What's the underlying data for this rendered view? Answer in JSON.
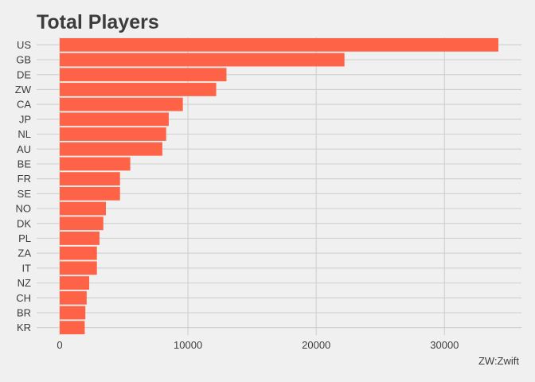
{
  "chart_data": {
    "type": "bar",
    "orientation": "horizontal",
    "title": "Total Players",
    "caption": "ZW:Zwift",
    "categories": [
      "US",
      "GB",
      "DE",
      "ZW",
      "CA",
      "JP",
      "NL",
      "AU",
      "BE",
      "FR",
      "SE",
      "NO",
      "DK",
      "PL",
      "ZA",
      "IT",
      "NZ",
      "CH",
      "BR",
      "KR"
    ],
    "values": [
      34200,
      22200,
      13000,
      12200,
      9600,
      8500,
      8300,
      8000,
      5500,
      4700,
      4700,
      3600,
      3400,
      3100,
      2900,
      2900,
      2300,
      2100,
      2000,
      1950
    ],
    "xticks": [
      0,
      10000,
      20000,
      30000
    ],
    "xlim": [
      -1800,
      36000
    ],
    "xlabel": "",
    "ylabel": "",
    "grid": true,
    "bar_color": "#ff6347",
    "background_color": "#f0f0f0",
    "grid_color": "#d2d2d2",
    "text_color": "#3c3c3c"
  }
}
